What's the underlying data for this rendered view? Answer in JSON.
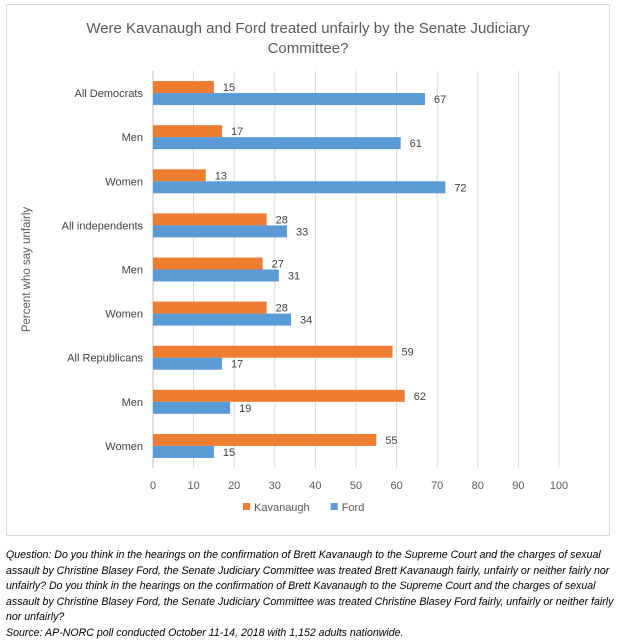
{
  "chart_data": {
    "type": "bar",
    "orientation": "horizontal",
    "title": "Were Kavanaugh and Ford treated unfairly by the Senate Judiciary Committee?",
    "ylabel": "Percent who say unfairly",
    "xlabel": "",
    "xlim": [
      0,
      100
    ],
    "xticks": [
      0,
      10,
      20,
      30,
      40,
      50,
      60,
      70,
      80,
      90,
      100
    ],
    "grid": true,
    "legend_position": "bottom",
    "categories": [
      "All Democrats",
      "Men",
      "Women",
      "All independents",
      "Men",
      "Women",
      "All Republicans",
      "Men",
      "Women"
    ],
    "series": [
      {
        "name": "Kavanaugh",
        "color": "#ed7d31",
        "values": [
          15,
          17,
          13,
          28,
          27,
          28,
          59,
          62,
          55
        ]
      },
      {
        "name": "Ford",
        "color": "#5b9bd5",
        "values": [
          67,
          61,
          72,
          33,
          31,
          34,
          17,
          19,
          15
        ]
      }
    ]
  },
  "notes": {
    "question": "Question: Do you think in the hearings on the confirmation of Brett Kavanaugh to the Supreme Court and the charges of sexual assault by Christine Blasey Ford, the Senate Judiciary Committee was treated Brett Kavanaugh fairly, unfairly or neither fairly nor unfairly? Do you think in the hearings on the confirmation of Brett Kavanaugh to the Supreme Court and the charges of sexual assault by Christine Blasey Ford, the Senate Judiciary Committee was treated Christine Blasey Ford fairly, unfairly or neither fairly nor unfairly?",
    "source": "Source: AP-NORC poll conducted October 11-14, 2018 with 1,152 adults nationwide."
  }
}
